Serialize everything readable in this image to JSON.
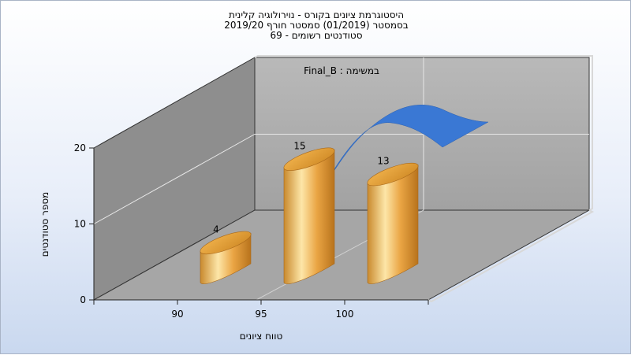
{
  "title_lines": [
    "היסטוגרמת ציונים בקורס - נוירולוגיה קלינית",
    "בסמסטר  (01/2019)  סמסטר חורף 2019/20",
    "סטודנטים רשומים - 69"
  ],
  "chart_data": {
    "type": "bar",
    "categories": [
      "90",
      "95",
      "100"
    ],
    "values": [
      4,
      15,
      13
    ],
    "data_labels": [
      "4",
      "15",
      "13"
    ],
    "xlabel": "טווח ציונים",
    "ylabel": "מספר סטודנטים",
    "y_ticks": [
      "0",
      "10",
      "20"
    ],
    "ylim": [
      0,
      20
    ],
    "grid": true,
    "legend_text": "במשימה : Final_B",
    "legend_placement": "top-center",
    "colors": {
      "bar": "#e8a23c",
      "bar_highlight": "#fde6a8",
      "bar_shadow": "#b8731c",
      "curve": "#3a78d4",
      "back_wall": "#a8a8a8",
      "side_wall": "#8c8c8c",
      "floor": "#a4a4a4"
    }
  }
}
